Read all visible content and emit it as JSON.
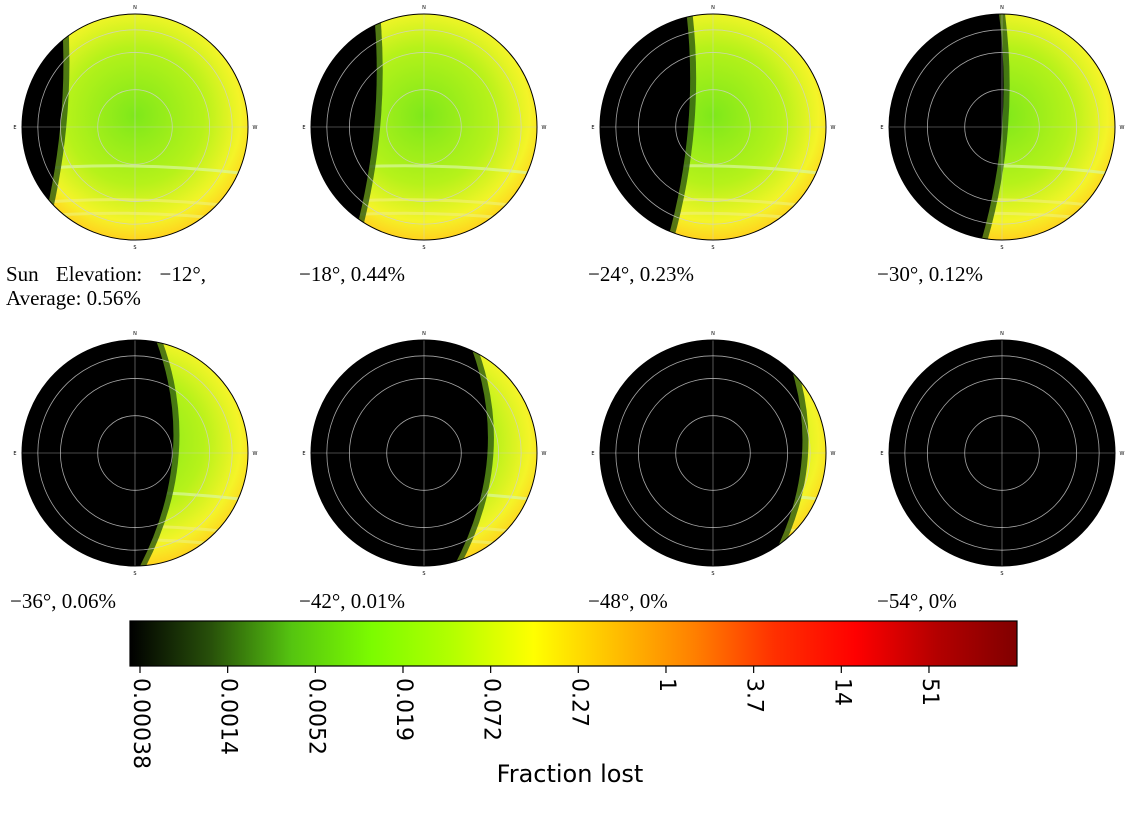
{
  "chart_data": {
    "type": "heatmap",
    "projection": "polar sky map (zenith at center, horizon at rim)",
    "panels": [
      {
        "label": "Sun Elevation: −12°, Average: 0.56%",
        "sun_elevation_deg": -12,
        "average_pct": 0.56
      },
      {
        "label": "−18°, 0.44%",
        "sun_elevation_deg": -18,
        "average_pct": 0.44
      },
      {
        "label": "−24°, 0.23%",
        "sun_elevation_deg": -24,
        "average_pct": 0.23
      },
      {
        "label": "−30°, 0.12%",
        "sun_elevation_deg": -30,
        "average_pct": 0.12
      },
      {
        "label": "−36°, 0.06%",
        "sun_elevation_deg": -36,
        "average_pct": 0.06
      },
      {
        "label": "−42°, 0.01%",
        "sun_elevation_deg": -42,
        "average_pct": 0.01
      },
      {
        "label": "−48°, 0%",
        "sun_elevation_deg": -48,
        "average_pct": 0
      },
      {
        "label": "−54°, 0%",
        "sun_elevation_deg": -54,
        "average_pct": 0
      }
    ],
    "direction_labels": {
      "north": "N",
      "south": "S",
      "east": "E",
      "west": "W"
    },
    "colorbar": {
      "title": "Fraction lost",
      "scale": "log",
      "ticks": [
        "0.00038",
        "0.0014",
        "0.0052",
        "0.019",
        "0.072",
        "0.27",
        "1",
        "3.7",
        "14",
        "51"
      ],
      "colormap": [
        "#000000",
        "#28500a",
        "#55c410",
        "#7cfc00",
        "#b4ff00",
        "#ffff00",
        "#ffc000",
        "#ff8000",
        "#ff3000",
        "#ff0000",
        "#b40000",
        "#800000"
      ]
    }
  }
}
